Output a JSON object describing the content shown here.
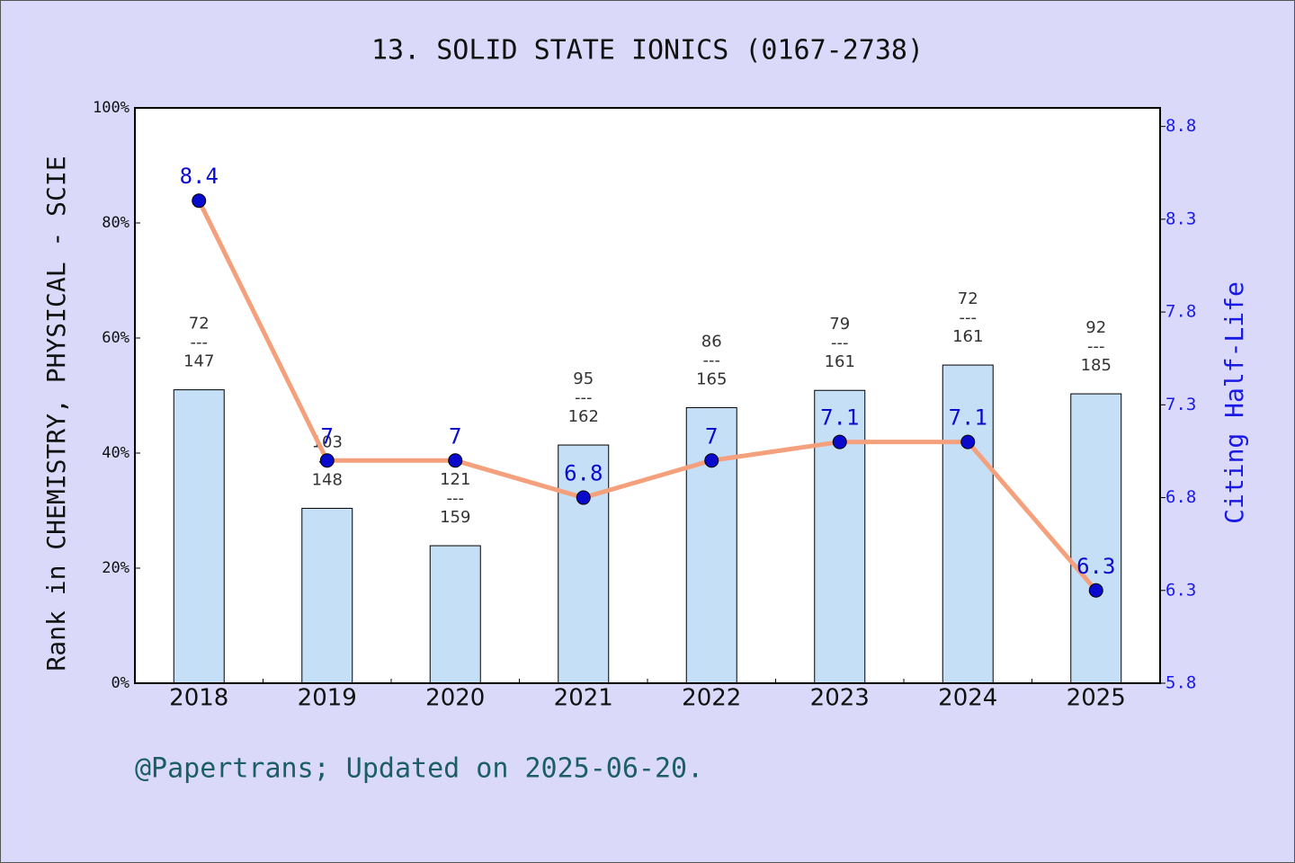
{
  "chart_data": {
    "type": "bar-line",
    "title": "13. SOLID STATE IONICS (0167-2738)",
    "ylabel": "Rank in CHEMISTRY, PHYSICAL - SCIE",
    "y2label": "Citing Half-Life",
    "footer": "@Papertrans; Updated on 2025-06-20.",
    "categories": [
      "2018",
      "2019",
      "2020",
      "2021",
      "2022",
      "2023",
      "2024",
      "2025"
    ],
    "series": [
      {
        "type": "bar",
        "color": "#c5dff7",
        "values": [
          51.0,
          30.4,
          23.9,
          41.4,
          47.9,
          50.9,
          55.3,
          50.3
        ]
      },
      {
        "type": "line",
        "axis": "y2",
        "color": "#f5a07c",
        "marker_color": "#0a0acc",
        "values": [
          8.4,
          7,
          7,
          6.8,
          7,
          7.1,
          7.1,
          6.3
        ]
      }
    ],
    "bar_labels": [
      [
        "72",
        "---",
        "147"
      ],
      [
        "103",
        "---",
        "148"
      ],
      [
        "121",
        "---",
        "159"
      ],
      [
        "95",
        "---",
        "162"
      ],
      [
        "86",
        "---",
        "165"
      ],
      [
        "79",
        "---",
        "161"
      ],
      [
        "72",
        "---",
        "161"
      ],
      [
        "92",
        "---",
        "185"
      ]
    ],
    "ylim": [
      0,
      100
    ],
    "yticks": [
      {
        "value": 0,
        "label": "0%"
      },
      {
        "value": 20,
        "label": "20%"
      },
      {
        "value": 40,
        "label": "40%"
      },
      {
        "value": 60,
        "label": "60%"
      },
      {
        "value": 80,
        "label": "80%"
      },
      {
        "value": 100,
        "label": "100%"
      }
    ],
    "y2lim": [
      5.8,
      8.9
    ],
    "y2ticks": [
      5.8,
      6.3,
      6.8,
      7.3,
      7.8,
      8.3,
      8.8
    ]
  }
}
